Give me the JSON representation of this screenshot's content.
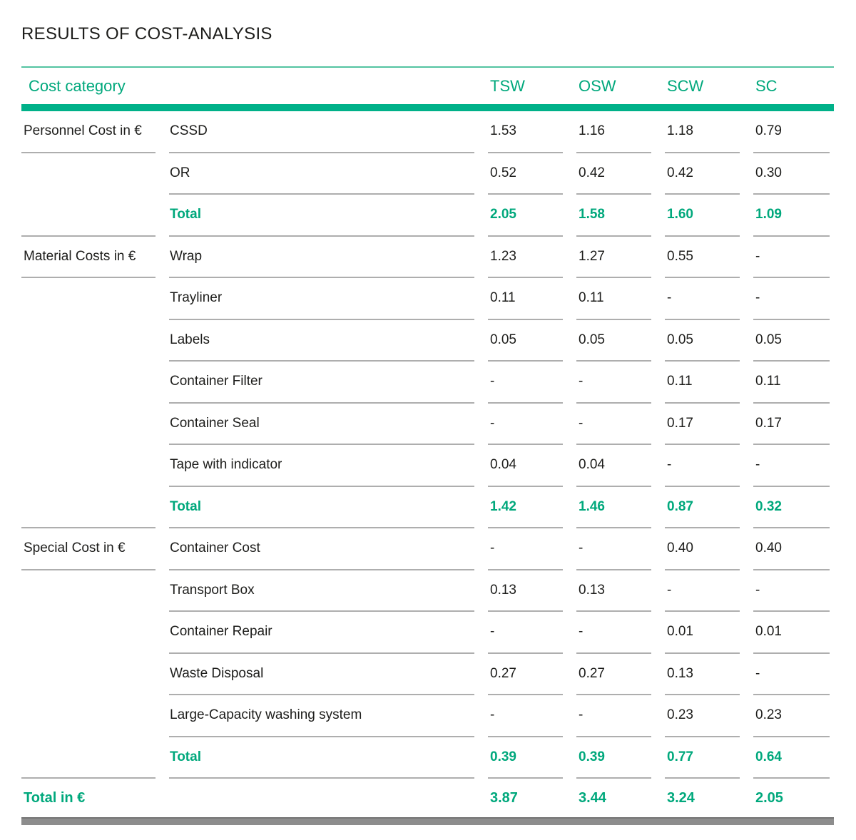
{
  "page": {
    "title": "RESULTS OF COST-ANALYSIS"
  },
  "colors": {
    "accent_green_text": "#00a87c",
    "accent_green_bar": "#00b189",
    "header_top_line": "#53c4a1",
    "row_divider_gray": "#aeaeae",
    "bottom_bar_gray": "#8d8d8d",
    "body_text": "#1d1d1b"
  },
  "table": {
    "header": {
      "category_label": "Cost category",
      "columns": [
        "TSW",
        "OSW",
        "SCW",
        "SC"
      ]
    },
    "rows": [
      {
        "category": "Personnel Cost in €",
        "item": "CSSD",
        "values": [
          "1.53",
          "1.16",
          "1.18",
          "0.79"
        ]
      },
      {
        "category": "",
        "item": "OR",
        "values": [
          "0.52",
          "0.42",
          "0.42",
          "0.30"
        ]
      },
      {
        "category": "",
        "item": "Total",
        "values": [
          "2.05",
          "1.58",
          "1.60",
          "1.09"
        ]
      },
      {
        "category": "Material Costs in €",
        "item": "Wrap",
        "values": [
          "1.23",
          "1.27",
          "0.55",
          "-"
        ]
      },
      {
        "category": "",
        "item": "Trayliner",
        "values": [
          "0.11",
          "0.11",
          "-",
          "-"
        ]
      },
      {
        "category": "",
        "item": "Labels",
        "values": [
          "0.05",
          "0.05",
          "0.05",
          "0.05"
        ]
      },
      {
        "category": "",
        "item": "Container Filter",
        "values": [
          "-",
          "-",
          "0.11",
          "0.11"
        ]
      },
      {
        "category": "",
        "item": "Container Seal",
        "values": [
          "-",
          "-",
          "0.17",
          "0.17"
        ]
      },
      {
        "category": "",
        "item": "Tape with indicator",
        "values": [
          "0.04",
          "0.04",
          "-",
          "-"
        ]
      },
      {
        "category": "",
        "item": "Total",
        "values": [
          "1.42",
          "1.46",
          "0.87",
          "0.32"
        ]
      },
      {
        "category": "Special Cost in €",
        "item": "Container Cost",
        "values": [
          "-",
          "-",
          "0.40",
          "0.40"
        ]
      },
      {
        "category": "",
        "item": "Transport Box",
        "values": [
          "0.13",
          "0.13",
          "-",
          "-"
        ]
      },
      {
        "category": "",
        "item": "Container Repair",
        "values": [
          "-",
          "-",
          "0.01",
          "0.01"
        ]
      },
      {
        "category": "",
        "item": "Waste Disposal",
        "values": [
          "0.27",
          "0.27",
          "0.13",
          "-"
        ]
      },
      {
        "category": "",
        "item": "Large-Capacity washing system",
        "values": [
          "-",
          "-",
          "0.23",
          "0.23"
        ]
      },
      {
        "category": "",
        "item": "Total",
        "values": [
          "0.39",
          "0.39",
          "0.77",
          "0.64"
        ]
      }
    ],
    "footer": {
      "label": "Total in €",
      "values": [
        "3.87",
        "3.44",
        "3.24",
        "2.05"
      ]
    }
  }
}
